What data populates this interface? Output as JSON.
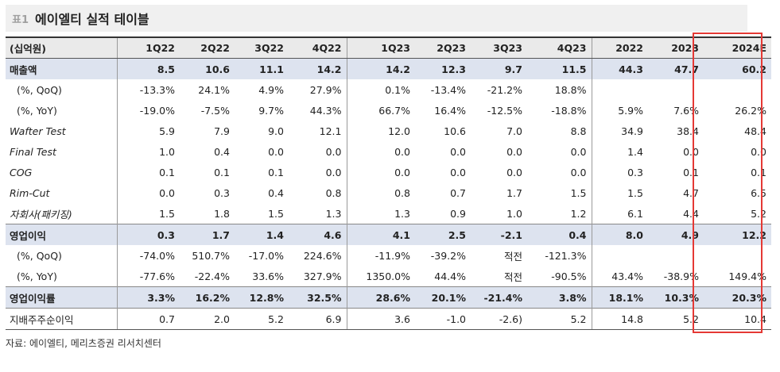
{
  "title": {
    "tag": "표1",
    "text": "에이엘티 실적 테이블"
  },
  "table": {
    "header": [
      "(십억원)",
      "1Q22",
      "2Q22",
      "3Q22",
      "4Q22",
      "1Q23",
      "2Q23",
      "3Q23",
      "4Q23",
      "2022",
      "2023",
      "2024E"
    ],
    "rows": [
      {
        "label": "매출액",
        "cells": [
          "8.5",
          "10.6",
          "11.1",
          "14.2",
          "14.2",
          "12.3",
          "9.7",
          "11.5",
          "44.3",
          "47.7",
          "60.2"
        ]
      },
      {
        "label": "(%, QoQ)",
        "cells": [
          "-13.3%",
          "24.1%",
          "4.9%",
          "27.9%",
          "0.1%",
          "-13.4%",
          "-21.2%",
          "18.8%",
          "",
          "",
          ""
        ]
      },
      {
        "label": "(%, YoY)",
        "cells": [
          "-19.0%",
          "-7.5%",
          "9.7%",
          "44.3%",
          "66.7%",
          "16.4%",
          "-12.5%",
          "-18.8%",
          "5.9%",
          "7.6%",
          "26.2%"
        ]
      },
      {
        "label": "Wafter Test",
        "cells": [
          "5.9",
          "7.9",
          "9.0",
          "12.1",
          "12.0",
          "10.6",
          "7.0",
          "8.8",
          "34.9",
          "38.4",
          "48.4"
        ]
      },
      {
        "label": "Final Test",
        "cells": [
          "1.0",
          "0.4",
          "0.0",
          "0.0",
          "0.0",
          "0.0",
          "0.0",
          "0.0",
          "1.4",
          "0.0",
          "0.0"
        ]
      },
      {
        "label": "COG",
        "cells": [
          "0.1",
          "0.1",
          "0.1",
          "0.0",
          "0.0",
          "0.0",
          "0.0",
          "0.0",
          "0.3",
          "0.1",
          "0.1"
        ]
      },
      {
        "label": "Rim-Cut",
        "cells": [
          "0.0",
          "0.3",
          "0.4",
          "0.8",
          "0.8",
          "0.7",
          "1.7",
          "1.5",
          "1.5",
          "4.7",
          "6.5"
        ]
      },
      {
        "label": "자회사(패키징)",
        "cells": [
          "1.5",
          "1.8",
          "1.5",
          "1.3",
          "1.3",
          "0.9",
          "1.0",
          "1.2",
          "6.1",
          "4.4",
          "5.2"
        ]
      },
      {
        "label": "영업이익",
        "cells": [
          "0.3",
          "1.7",
          "1.4",
          "4.6",
          "4.1",
          "2.5",
          "-2.1",
          "0.4",
          "8.0",
          "4.9",
          "12.2"
        ]
      },
      {
        "label": "(%, QoQ)",
        "cells": [
          "-74.0%",
          "510.7%",
          "-17.0%",
          "224.6%",
          "-11.9%",
          "-39.2%",
          "적전",
          "-121.3%",
          "",
          "",
          ""
        ]
      },
      {
        "label": "(%, YoY)",
        "cells": [
          "-77.6%",
          "-22.4%",
          "33.6%",
          "327.9%",
          "1350.0%",
          "44.4%",
          "적전",
          "-90.5%",
          "43.4%",
          "-38.9%",
          "149.4%"
        ]
      },
      {
        "label": "영업이익률",
        "cells": [
          "3.3%",
          "16.2%",
          "12.8%",
          "32.5%",
          "28.6%",
          "20.1%",
          "-21.4%",
          "3.8%",
          "18.1%",
          "10.3%",
          "20.3%"
        ]
      },
      {
        "label": "지배주주순이익",
        "cells": [
          "0.7",
          "2.0",
          "5.2",
          "6.9",
          "3.6",
          "-1.0",
          "-2.6)",
          "5.2",
          "14.8",
          "5.2",
          "10.4"
        ]
      }
    ]
  },
  "source": "자료: 에이엘티, 메리츠증권 리서치센터",
  "colors": {
    "highlight_border": "#e53935",
    "shade_row": "#dde3ef",
    "header_bg": "#eaeaea",
    "title_bg": "#f0f0f0"
  }
}
